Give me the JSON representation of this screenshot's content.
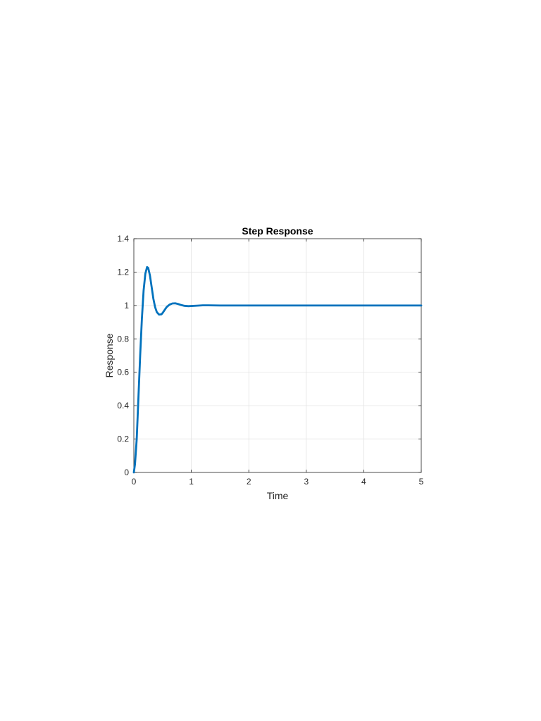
{
  "chart_data": {
    "type": "line",
    "title": "Step Response",
    "xlabel": "Time",
    "ylabel": "Response",
    "xlim": [
      0,
      5
    ],
    "ylim": [
      0,
      1.4
    ],
    "xticks": [
      "0",
      "1",
      "2",
      "3",
      "4",
      "5"
    ],
    "yticks": [
      "0",
      "0.2",
      "0.4",
      "0.6",
      "0.8",
      "1",
      "1.2",
      "1.4"
    ],
    "grid": true,
    "legend": "none",
    "series": [
      {
        "color": "#0072BD",
        "x": [
          0,
          0.02,
          0.05,
          0.08,
          0.11,
          0.14,
          0.17,
          0.2,
          0.23,
          0.25,
          0.28,
          0.31,
          0.34,
          0.37,
          0.4,
          0.44,
          0.48,
          0.5,
          0.53,
          0.57,
          0.62,
          0.67,
          0.72,
          0.77,
          0.82,
          0.88,
          0.95,
          1.0,
          1.1,
          1.2,
          1.3,
          1.5,
          2,
          3,
          4,
          5
        ],
        "y": [
          0,
          0.05,
          0.2,
          0.45,
          0.7,
          0.92,
          1.09,
          1.19,
          1.23,
          1.225,
          1.18,
          1.11,
          1.04,
          0.99,
          0.96,
          0.945,
          0.947,
          0.955,
          0.97,
          0.99,
          1.005,
          1.012,
          1.013,
          1.009,
          1.003,
          0.998,
          0.996,
          0.997,
          0.999,
          1.001,
          1.001,
          1.0,
          1.0,
          1.0,
          1.0,
          1.0
        ]
      }
    ]
  }
}
